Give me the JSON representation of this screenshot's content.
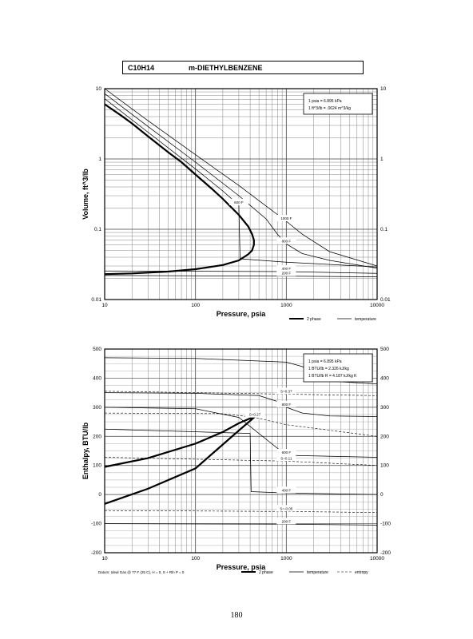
{
  "header": {
    "formula": "C10H14",
    "compound": "m-DIETHYLBENZENE"
  },
  "page_number": "180",
  "chart_data": [
    {
      "type": "line",
      "xscale": "log",
      "yscale": "log",
      "xlim": [
        10,
        10000
      ],
      "ylim": [
        0.01,
        10
      ],
      "xlabel": "Pressure,  psia",
      "ylabel": "Volume, ft^3/lb",
      "x_ticks": [
        "10",
        "100",
        "1000",
        "10000"
      ],
      "y_ticks": [
        "0.01",
        "0.1",
        "1",
        "10"
      ],
      "grid": true,
      "legend_position": "bottom-right",
      "legend": [
        "2 phase",
        "temperature"
      ],
      "conversions": [
        "1 psia = 6.895 kPa",
        "1 ft^3/lb = .0624 m^3/kg"
      ],
      "series": [
        {
          "name": "2 phase",
          "style": "phase",
          "points": [
            [
              10,
              6.0
            ],
            [
              15,
              4.2
            ],
            [
              20,
              3.2
            ],
            [
              30,
              2.1
            ],
            [
              50,
              1.25
            ],
            [
              70,
              0.9
            ],
            [
              100,
              0.6
            ],
            [
              150,
              0.38
            ],
            [
              200,
              0.27
            ],
            [
              300,
              0.16
            ],
            [
              380,
              0.11
            ],
            [
              420,
              0.085
            ],
            [
              440,
              0.07
            ],
            [
              440,
              0.06
            ],
            [
              420,
              0.05
            ],
            [
              380,
              0.044
            ],
            [
              300,
              0.036
            ],
            [
              200,
              0.031
            ],
            [
              100,
              0.027
            ],
            [
              50,
              0.025
            ],
            [
              20,
              0.0235
            ],
            [
              10,
              0.023
            ]
          ]
        },
        {
          "label": "1000 F",
          "style": "temp",
          "points": [
            [
              10,
              10
            ],
            [
              30,
              3.5
            ],
            [
              100,
              1.15
            ],
            [
              300,
              0.42
            ],
            [
              1000,
              0.13
            ],
            [
              1500,
              0.085
            ],
            [
              3000,
              0.048
            ],
            [
              10000,
              0.03
            ]
          ]
        },
        {
          "label": "800 F",
          "style": "temp",
          "points": [
            [
              10,
              8.5
            ],
            [
              30,
              2.9
            ],
            [
              100,
              0.9
            ],
            [
              300,
              0.3
            ],
            [
              600,
              0.14
            ],
            [
              800,
              0.085
            ],
            [
              1000,
              0.062
            ],
            [
              1500,
              0.045
            ],
            [
              3000,
              0.036
            ],
            [
              10000,
              0.028
            ]
          ]
        },
        {
          "label": "600 F",
          "style": "temp",
          "points": [
            [
              10,
              7.2
            ],
            [
              30,
              2.4
            ],
            [
              100,
              0.72
            ],
            [
              200,
              0.35
            ],
            [
              300,
              0.22
            ],
            [
              310,
              0.038
            ],
            [
              1000,
              0.034
            ],
            [
              10000,
              0.029
            ]
          ]
        },
        {
          "label": "400 F",
          "style": "temp",
          "points": [
            [
              10,
              0.0255
            ],
            [
              1000,
              0.025
            ],
            [
              10000,
              0.0235
            ]
          ]
        },
        {
          "label": "200 F",
          "style": "temp",
          "points": [
            [
              10,
              0.022
            ],
            [
              1000,
              0.0215
            ],
            [
              10000,
              0.021
            ]
          ]
        }
      ]
    },
    {
      "type": "line",
      "xscale": "log",
      "xlim": [
        10,
        10000
      ],
      "ylim": [
        -200,
        500
      ],
      "xlabel": "Pressure,  psia",
      "ylabel": "Enthalpy, BTU/lb",
      "x_ticks": [
        "10",
        "100",
        "1000",
        "10000"
      ],
      "y_ticks": [
        "-200",
        "-100",
        "0",
        "100",
        "200",
        "300",
        "400",
        "500"
      ],
      "grid": true,
      "legend_position": "bottom-right",
      "legend": [
        "2 phase",
        "temperature",
        "entropy"
      ],
      "conversions": [
        "1 psia = 6.895 kPa",
        "1 BTU/lb = 2.326 kJ/kg",
        "1 BTU/lb R = 4.187 kJ/kg K"
      ],
      "footnote": "Datum: Ideal Gas @ 77 F (25 C), H = 0, S + Rln P = 0",
      "series": [
        {
          "name": "2 phase",
          "style": "phase",
          "points": [
            [
              10,
              95
            ],
            [
              30,
              125
            ],
            [
              100,
              175
            ],
            [
              200,
              215
            ],
            [
              300,
              245
            ],
            [
              400,
              262
            ],
            [
              430,
              262
            ],
            [
              300,
              220
            ],
            [
              100,
              90
            ],
            [
              30,
              20
            ],
            [
              10,
              -32
            ]
          ]
        },
        {
          "label": "1000 F",
          "style": "temp",
          "points": [
            [
              10,
              470
            ],
            [
              100,
              468
            ],
            [
              1000,
              455
            ],
            [
              1500,
              440
            ],
            [
              2000,
              415
            ],
            [
              3000,
              390
            ],
            [
              10000,
              380
            ]
          ]
        },
        {
          "label": "800 F",
          "style": "temp",
          "points": [
            [
              10,
              350
            ],
            [
              100,
              348
            ],
            [
              500,
              340
            ],
            [
              800,
              320
            ],
            [
              1000,
              300
            ],
            [
              1500,
              280
            ],
            [
              3000,
              270
            ],
            [
              10000,
              268
            ]
          ]
        },
        {
          "label": "600 F",
          "style": "temp",
          "points": [
            [
              10,
              300
            ],
            [
              100,
              295
            ],
            [
              300,
              265
            ],
            [
              1000,
              135
            ],
            [
              10000,
              128
            ]
          ]
        },
        {
          "label": "400 F",
          "style": "temp",
          "points": [
            [
              10,
              225
            ],
            [
              400,
              210
            ],
            [
              410,
              10
            ],
            [
              1000,
              5
            ],
            [
              10000,
              0
            ]
          ]
        },
        {
          "label": "200 F",
          "style": "temp",
          "points": [
            [
              10,
              -100
            ],
            [
              1000,
              -102
            ],
            [
              10000,
              -105
            ]
          ]
        },
        {
          "label": "S=0.37",
          "style": "entropy",
          "points": [
            [
              10,
              355
            ],
            [
              100,
              350
            ],
            [
              1000,
              345
            ],
            [
              10000,
              340
            ]
          ]
        },
        {
          "label": "S=0.27",
          "style": "entropy",
          "points": [
            [
              10,
              280
            ],
            [
              200,
              278
            ],
            [
              450,
              265
            ],
            [
              1000,
              240
            ],
            [
              10000,
              200
            ]
          ]
        },
        {
          "label": "S=0.11",
          "style": "entropy",
          "points": [
            [
              10,
              128
            ],
            [
              1000,
              115
            ],
            [
              10000,
              100
            ]
          ]
        },
        {
          "label": "S=-0.05",
          "style": "entropy",
          "points": [
            [
              10,
              -55
            ],
            [
              1000,
              -58
            ],
            [
              10000,
              -62
            ]
          ]
        }
      ]
    }
  ]
}
